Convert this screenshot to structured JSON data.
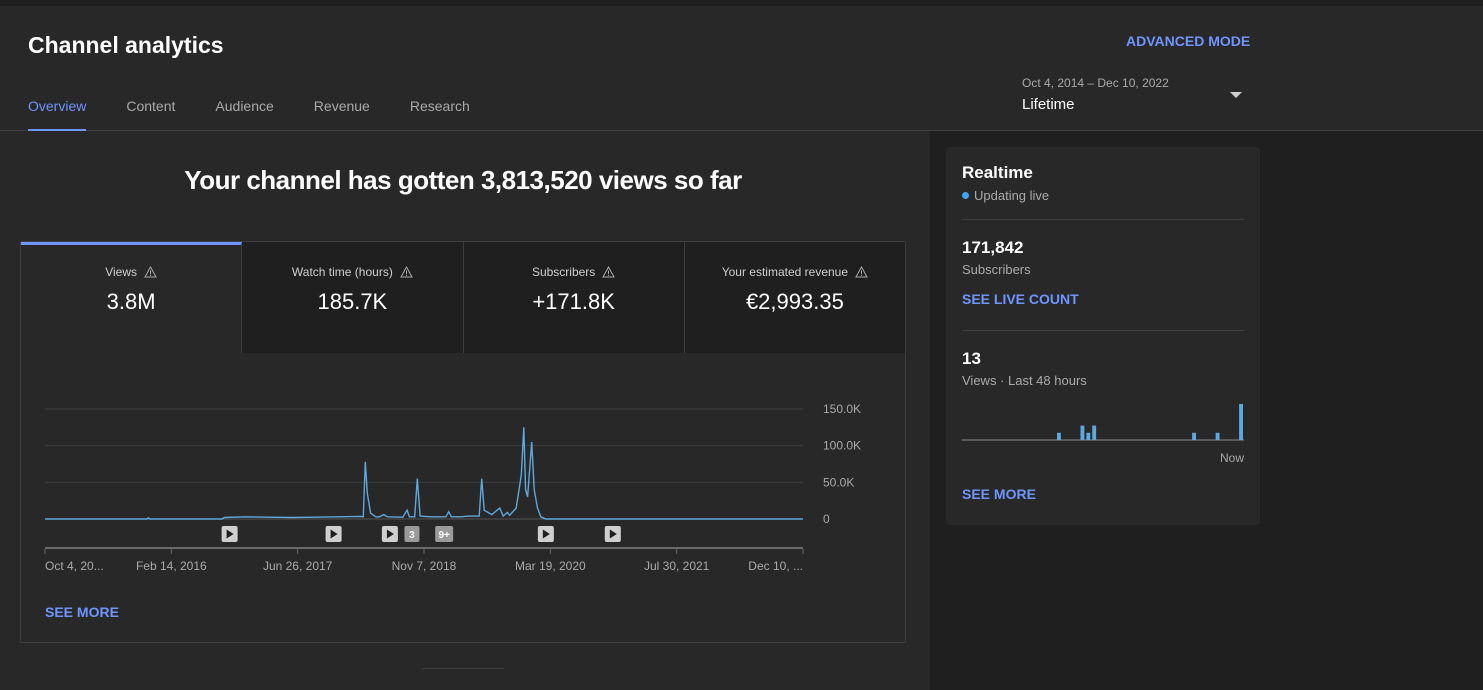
{
  "header": {
    "title": "Channel analytics",
    "advanced_mode": "ADVANCED MODE",
    "tabs": [
      {
        "label": "Overview"
      },
      {
        "label": "Content"
      },
      {
        "label": "Audience"
      },
      {
        "label": "Revenue"
      },
      {
        "label": "Research"
      }
    ],
    "active_tab": "Overview",
    "date_range": "Oct 4, 2014 – Dec 10, 2022",
    "date_label": "Lifetime"
  },
  "overview": {
    "headline": "Your channel has gotten 3,813,520 views so far",
    "metrics": [
      {
        "label": "Views",
        "value": "3.8M"
      },
      {
        "label": "Watch time (hours)",
        "value": "185.7K"
      },
      {
        "label": "Subscribers",
        "value": "+171.8K"
      },
      {
        "label": "Your estimated revenue",
        "value": "€2,993.35"
      }
    ],
    "active_metric": "Views",
    "see_more": "SEE MORE",
    "markers": [
      {
        "type": "video",
        "x": "2016-10-01"
      },
      {
        "type": "video",
        "x": "2017-11-15"
      },
      {
        "type": "video",
        "x": "2018-06-25"
      },
      {
        "type": "count",
        "label": "3",
        "x": "2018-09-20"
      },
      {
        "type": "count",
        "label": "9+",
        "x": "2019-01-25"
      },
      {
        "type": "video",
        "x": "2020-03-01"
      },
      {
        "type": "video",
        "x": "2020-11-20"
      }
    ]
  },
  "chart_data": {
    "type": "line",
    "x_tick_labels": [
      "Oct 4, 20...",
      "Feb 14, 2016",
      "Jun 26, 2017",
      "Nov 7, 2018",
      "Mar 19, 2020",
      "Jul 30, 2021",
      "Dec 10, ..."
    ],
    "y_tick_labels": [
      "150.0K",
      "100.0K",
      "50.0K",
      "0"
    ],
    "ylim": [
      0,
      150000
    ],
    "xlim": [
      "2014-10-04",
      "2022-12-10"
    ],
    "series": [
      {
        "color": "#5fa8dd",
        "points": [
          [
            "2014-10-04",
            0
          ],
          [
            "2015-11-10",
            0
          ],
          [
            "2015-11-15",
            1500
          ],
          [
            "2015-11-22",
            0
          ],
          [
            "2016-09-01",
            0
          ],
          [
            "2016-09-10",
            2000
          ],
          [
            "2016-12-01",
            3000
          ],
          [
            "2017-03-01",
            2500
          ],
          [
            "2017-06-01",
            2000
          ],
          [
            "2017-09-01",
            2500
          ],
          [
            "2017-12-01",
            3000
          ],
          [
            "2018-03-01",
            3500
          ],
          [
            "2018-03-12",
            3000
          ],
          [
            "2018-03-20",
            78000
          ],
          [
            "2018-03-28",
            35000
          ],
          [
            "2018-04-10",
            8000
          ],
          [
            "2018-04-30",
            3000
          ],
          [
            "2018-05-15",
            3000
          ],
          [
            "2018-06-01",
            6000
          ],
          [
            "2018-06-15",
            3000
          ],
          [
            "2018-08-15",
            2500
          ],
          [
            "2018-09-01",
            12000
          ],
          [
            "2018-09-10",
            3000
          ],
          [
            "2018-10-01",
            3000
          ],
          [
            "2018-10-11",
            55000
          ],
          [
            "2018-10-22",
            4000
          ],
          [
            "2018-12-01",
            3000
          ],
          [
            "2019-02-01",
            3000
          ],
          [
            "2019-02-12",
            10000
          ],
          [
            "2019-02-22",
            3000
          ],
          [
            "2019-04-01",
            3000
          ],
          [
            "2019-05-01",
            4000
          ],
          [
            "2019-06-12",
            4000
          ],
          [
            "2019-06-22",
            55000
          ],
          [
            "2019-07-02",
            12000
          ],
          [
            "2019-08-01",
            6000
          ],
          [
            "2019-09-01",
            15000
          ],
          [
            "2019-09-15",
            4000
          ],
          [
            "2019-10-01",
            9000
          ],
          [
            "2019-10-10",
            5000
          ],
          [
            "2019-11-05",
            15000
          ],
          [
            "2019-11-25",
            60000
          ],
          [
            "2019-12-05",
            125000
          ],
          [
            "2019-12-12",
            40000
          ],
          [
            "2019-12-20",
            30000
          ],
          [
            "2020-01-05",
            105000
          ],
          [
            "2020-01-15",
            40000
          ],
          [
            "2020-01-28",
            15000
          ],
          [
            "2020-02-10",
            3000
          ],
          [
            "2020-03-01",
            0
          ],
          [
            "2022-12-10",
            0
          ]
        ]
      }
    ],
    "grid": true
  },
  "realtime": {
    "title": "Realtime",
    "status": "Updating live",
    "subscribers_value": "171,842",
    "subscribers_label": "Subscribers",
    "live_count_link": "SEE LIVE COUNT",
    "views_value": "13",
    "views_label": "Views · Last 48 hours",
    "now_label": "Now",
    "see_more": "SEE MORE",
    "hourly_views": [
      0,
      0,
      0,
      0,
      0,
      0,
      0,
      0,
      0,
      0,
      0,
      0,
      0,
      0,
      0,
      0,
      1,
      0,
      0,
      0,
      2,
      1,
      2,
      0,
      0,
      0,
      0,
      0,
      0,
      0,
      0,
      0,
      0,
      0,
      0,
      0,
      0,
      0,
      0,
      1,
      0,
      0,
      0,
      1,
      0,
      0,
      0,
      5
    ],
    "bar_color": "#5fa8dd"
  }
}
